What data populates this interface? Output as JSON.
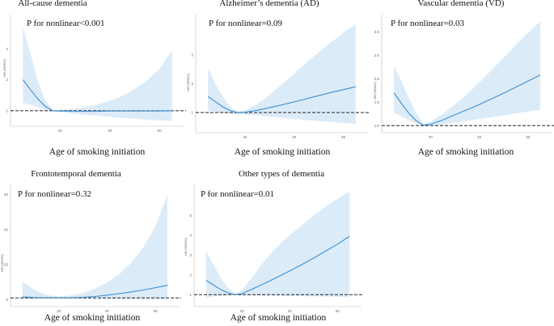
{
  "colors": {
    "line": "#3d8fcf",
    "band": "#dcebf8",
    "ref": "#222222",
    "axis": "#bbbbbb"
  },
  "chart_data": [
    {
      "type": "line",
      "title": "All-cause dementia",
      "annotation": "P for nonlinear<0.001",
      "xlabel": "Age of smoking initiation",
      "ylabel": "HR (95%CI)",
      "xlim": [
        0,
        70
      ],
      "ylim": [
        0.5,
        4
      ],
      "xticks": [
        "20",
        "40",
        "60"
      ],
      "yticks": [
        "1",
        "2",
        "3"
      ],
      "reference_y": 1,
      "x": [
        5,
        8,
        11,
        14,
        17,
        20,
        25,
        30,
        35,
        40,
        45,
        50,
        55,
        60,
        65
      ],
      "hr": [
        2.0,
        1.68,
        1.38,
        1.14,
        1.0,
        0.99,
        0.98,
        0.98,
        0.98,
        0.99,
        0.99,
        0.99,
        0.99,
        0.99,
        1.0
      ],
      "lower": [
        1.25,
        1.2,
        1.12,
        1.03,
        0.97,
        0.95,
        0.91,
        0.87,
        0.84,
        0.8,
        0.77,
        0.74,
        0.71,
        0.69,
        0.67
      ],
      "upper": [
        3.7,
        2.85,
        1.95,
        1.33,
        1.03,
        1.03,
        1.06,
        1.12,
        1.2,
        1.32,
        1.48,
        1.7,
        1.98,
        2.35,
        2.95
      ]
    },
    {
      "type": "line",
      "title": "Alzheimer’s dementia (AD)",
      "annotation": "P for nonlinear=0.09",
      "xlabel": "Age of smoking initiation",
      "ylabel": "HR (95%CI)",
      "xlim": [
        0,
        70
      ],
      "ylim": [
        0.3,
        4.3
      ],
      "xticks": [
        "20",
        "40",
        "60"
      ],
      "yticks": [
        "1",
        "2",
        "3"
      ],
      "reference_y": 1,
      "x": [
        5,
        8,
        11,
        14,
        17,
        20,
        25,
        30,
        35,
        40,
        45,
        50,
        55,
        60,
        65
      ],
      "hr": [
        1.56,
        1.38,
        1.2,
        1.07,
        1.0,
        1.01,
        1.08,
        1.17,
        1.27,
        1.37,
        1.48,
        1.59,
        1.7,
        1.8,
        1.9
      ],
      "lower": [
        1.05,
        1.02,
        0.98,
        0.96,
        0.95,
        0.93,
        0.9,
        0.86,
        0.82,
        0.78,
        0.74,
        0.7,
        0.67,
        0.64,
        0.61
      ],
      "upper": [
        2.55,
        2.0,
        1.55,
        1.2,
        1.03,
        1.08,
        1.3,
        1.62,
        1.98,
        2.35,
        2.75,
        3.1,
        3.45,
        3.78,
        4.08
      ]
    },
    {
      "type": "line",
      "title": "Vascular dementia (VD)",
      "annotation": "P for nonlinear=0.03",
      "xlabel": "Age of smoking initiation",
      "ylabel": "HR (95%CI)",
      "xlim": [
        0,
        70
      ],
      "ylim": [
        0.85,
        3.3
      ],
      "xticks": [
        "20",
        "40",
        "60"
      ],
      "yticks": [
        "1.0",
        "1.5",
        "2.0",
        "2.5",
        "3.0"
      ],
      "reference_y": 1,
      "x": [
        5,
        8,
        11,
        14,
        17,
        20,
        25,
        30,
        35,
        40,
        45,
        50,
        55,
        60,
        65
      ],
      "hr": [
        1.7,
        1.48,
        1.27,
        1.11,
        1.01,
        1.03,
        1.12,
        1.23,
        1.34,
        1.45,
        1.57,
        1.69,
        1.82,
        1.95,
        2.08
      ],
      "lower": [
        1.28,
        1.2,
        1.12,
        1.04,
        0.99,
        0.99,
        1.02,
        1.06,
        1.1,
        1.14,
        1.18,
        1.22,
        1.26,
        1.3,
        1.34
      ],
      "upper": [
        2.28,
        1.95,
        1.6,
        1.28,
        1.04,
        1.08,
        1.25,
        1.45,
        1.67,
        1.92,
        2.18,
        2.45,
        2.72,
        2.98,
        3.22
      ]
    },
    {
      "type": "line",
      "title": "Frontotemporal dementia",
      "annotation": "P for nonlinear=0.32",
      "xlabel": "Age of smoking initiation",
      "ylabel": "HR (95%CI)",
      "xlim": [
        0,
        70
      ],
      "ylim": [
        -4,
        64
      ],
      "xticks": [
        "20",
        "40",
        "60"
      ],
      "yticks": [
        "0",
        "20",
        "40",
        "60"
      ],
      "reference_y": 1,
      "x": [
        5,
        10,
        15,
        20,
        25,
        30,
        35,
        40,
        45,
        50,
        55,
        60,
        65
      ],
      "hr": [
        1.5,
        1.2,
        1.05,
        1.0,
        1.05,
        1.3,
        1.8,
        2.5,
        3.4,
        4.4,
        5.5,
        6.8,
        8.2
      ],
      "lower": [
        0.4,
        0.5,
        0.6,
        0.6,
        0.5,
        0.45,
        0.4,
        0.35,
        0.3,
        0.25,
        0.2,
        0.15,
        0.1
      ],
      "upper": [
        10.5,
        5.5,
        2.5,
        1.8,
        2.4,
        3.8,
        6.2,
        9.8,
        14.5,
        21,
        30,
        42,
        60
      ]
    },
    {
      "type": "line",
      "title": "Other types of dementia",
      "annotation": "P for nonlinear=0.01",
      "xlabel": "Age of smoking initiation",
      "ylabel": "HR (95%CI)",
      "xlim": [
        0,
        70
      ],
      "ylim": [
        0.4,
        6.4
      ],
      "xticks": [
        "20",
        "40",
        "60"
      ],
      "yticks": [
        "1",
        "2",
        "3",
        "4",
        "5"
      ],
      "reference_y": 1,
      "x": [
        5,
        8,
        11,
        14,
        17,
        20,
        25,
        30,
        35,
        40,
        45,
        50,
        55,
        60,
        65
      ],
      "hr": [
        1.72,
        1.5,
        1.27,
        1.1,
        1.0,
        1.05,
        1.32,
        1.6,
        1.9,
        2.2,
        2.52,
        2.85,
        3.2,
        3.55,
        3.95
      ],
      "lower": [
        0.85,
        0.9,
        0.95,
        0.97,
        0.98,
        0.97,
        0.96,
        0.95,
        0.94,
        0.93,
        0.92,
        0.91,
        0.9,
        0.89,
        0.88
      ],
      "upper": [
        3.2,
        2.55,
        1.85,
        1.38,
        1.04,
        1.2,
        2.0,
        2.8,
        3.45,
        4.0,
        4.5,
        5.0,
        5.45,
        5.85,
        6.2
      ]
    }
  ]
}
